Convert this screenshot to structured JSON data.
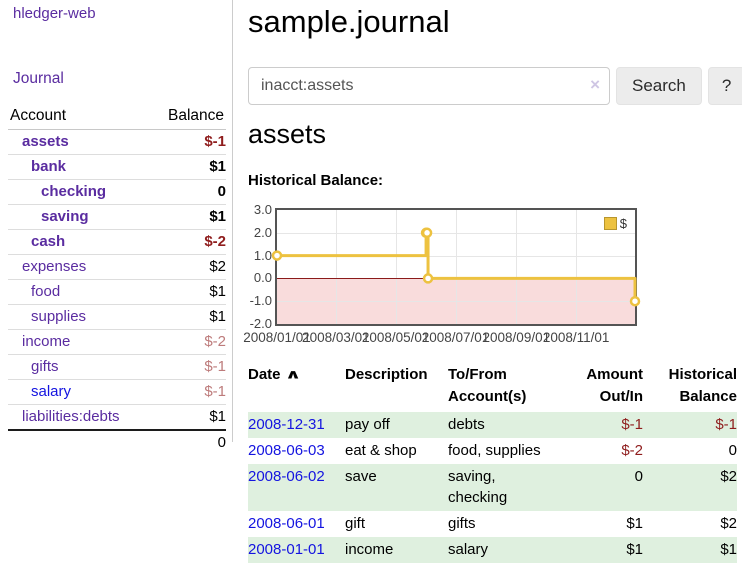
{
  "sidebar": {
    "brand": "hledger-web",
    "journal_link": "Journal",
    "accounts_table": {
      "headers": [
        "Account",
        "Balance"
      ],
      "rows": [
        {
          "name": "assets",
          "indent": 1,
          "bold": true,
          "link_color": "purple",
          "balance": "$-1",
          "neg": "strong"
        },
        {
          "name": "bank",
          "indent": 2,
          "bold": true,
          "link_color": "purple",
          "balance": "$1",
          "neg": null
        },
        {
          "name": "checking",
          "indent": 3,
          "bold": true,
          "link_color": "purple",
          "balance": "0",
          "neg": null
        },
        {
          "name": "saving",
          "indent": 3,
          "bold": true,
          "link_color": "purple",
          "balance": "$1",
          "neg": null
        },
        {
          "name": "cash",
          "indent": 2,
          "bold": true,
          "link_color": "purple",
          "balance": "$-2",
          "neg": "strong"
        },
        {
          "name": "expenses",
          "indent": 1,
          "bold": false,
          "link_color": "purple",
          "balance": "$2",
          "neg": null
        },
        {
          "name": "food",
          "indent": 2,
          "bold": false,
          "link_color": "purple",
          "balance": "$1",
          "neg": null
        },
        {
          "name": "supplies",
          "indent": 2,
          "bold": false,
          "link_color": "purple",
          "balance": "$1",
          "neg": null
        },
        {
          "name": "income",
          "indent": 1,
          "bold": false,
          "link_color": "purple",
          "balance": "$-2",
          "neg": "light"
        },
        {
          "name": "gifts",
          "indent": 2,
          "bold": false,
          "link_color": "purple",
          "balance": "$-1",
          "neg": "light"
        },
        {
          "name": "salary",
          "indent": 2,
          "bold": false,
          "link_color": "blue",
          "balance": "$-1",
          "neg": "light"
        },
        {
          "name": "liabilities:debts",
          "indent": 1,
          "bold": false,
          "link_color": "purple",
          "balance": "$1",
          "neg": null
        }
      ],
      "total": "0"
    }
  },
  "main": {
    "title": "sample.journal",
    "search": {
      "value": "inacct:assets",
      "clear_icon": "×",
      "button_label": "Search",
      "help_label": "?"
    },
    "account_heading": "assets",
    "chart_label": "Historical Balance:"
  },
  "chart_data": {
    "type": "line",
    "title": "Historical Balance:",
    "x_range": [
      "2008-01-01",
      "2008-12-31"
    ],
    "ylim": [
      -2,
      3
    ],
    "y_ticks": [
      3,
      2,
      1,
      0,
      -1,
      -2
    ],
    "x_ticks": [
      "2008/01/01",
      "2008/03/01",
      "2008/05/01",
      "2008/07/01",
      "2008/09/01",
      "2008/11/01"
    ],
    "series": [
      {
        "name": "$",
        "color": "#edc240",
        "steps": true,
        "points": [
          [
            "2008-01-01",
            1
          ],
          [
            "2008-06-01",
            2
          ],
          [
            "2008-06-02",
            2
          ],
          [
            "2008-06-03",
            0
          ],
          [
            "2008-12-31",
            -1
          ]
        ]
      }
    ],
    "legend": {
      "label": "$",
      "position": "top-right"
    },
    "zero_line_color": "#8b1a1a",
    "negative_region_color": "#f9dcdc",
    "grid": true
  },
  "register": {
    "headers": [
      {
        "label": "Date",
        "sort_icon": "∧"
      },
      {
        "label": "Description"
      },
      {
        "label": "To/From Account(s)"
      },
      {
        "label": "Amount Out/In"
      },
      {
        "label": "Historical Balance"
      }
    ],
    "rows": [
      {
        "date": "2008-12-31",
        "description": "pay off",
        "accounts": "debts",
        "amount": "$-1",
        "amount_neg": true,
        "balance": "$-1",
        "balance_neg": true
      },
      {
        "date": "2008-06-03",
        "description": "eat & shop",
        "accounts": "food, supplies",
        "amount": "$-2",
        "amount_neg": true,
        "balance": "0",
        "balance_neg": false
      },
      {
        "date": "2008-06-02",
        "description": "save",
        "accounts": "saving, checking",
        "amount": "0",
        "amount_neg": false,
        "balance": "$2",
        "balance_neg": false
      },
      {
        "date": "2008-06-01",
        "description": "gift",
        "accounts": "gifts",
        "amount": "$1",
        "amount_neg": false,
        "balance": "$2",
        "balance_neg": false
      },
      {
        "date": "2008-01-01",
        "description": "income",
        "accounts": "salary",
        "amount": "$1",
        "amount_neg": false,
        "balance": "$1",
        "balance_neg": false
      }
    ]
  }
}
